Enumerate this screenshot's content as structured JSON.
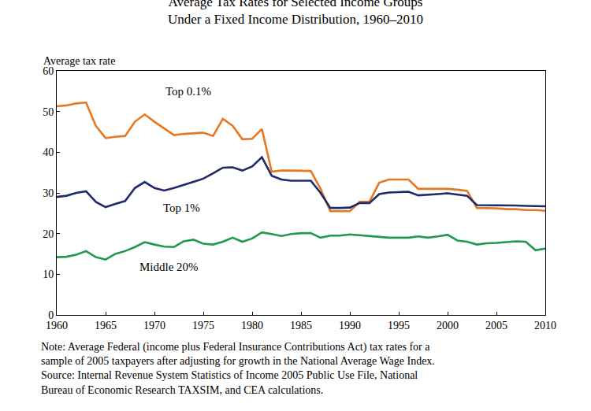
{
  "chart_data": {
    "type": "line",
    "title": "Average Tax Rates for Selected Income Groups",
    "subtitle": "Under a Fixed Income Distribution, 1960–2010",
    "y_label": "Average tax rate",
    "annotations": [
      "Note: Average Federal (income plus Federal Insurance Contributions Act) tax rates for a sample of 2005 taxpayers after adjusting for growth in the National Average Wage Index.",
      "Source: Internal Revenue System Statistics of Income 2005 Public Use File, National Bureau of Economic Research TAXSIM, and CEA calculations."
    ],
    "x": [
      1960,
      1961,
      1962,
      1963,
      1964,
      1965,
      1966,
      1967,
      1968,
      1969,
      1970,
      1971,
      1972,
      1973,
      1974,
      1975,
      1976,
      1977,
      1978,
      1979,
      1980,
      1981,
      1982,
      1983,
      1984,
      1985,
      1986,
      1987,
      1988,
      1989,
      1990,
      1991,
      1992,
      1993,
      1994,
      1995,
      1996,
      1997,
      1998,
      1999,
      2000,
      2001,
      2002,
      2003,
      2004,
      2005,
      2006,
      2007,
      2008,
      2009,
      2010
    ],
    "series": [
      {
        "name": "Top 0.1%",
        "color": "#e87722",
        "values": [
          51.3,
          51.5,
          52,
          52.2,
          46.5,
          43.5,
          43.8,
          44,
          47.5,
          49.3,
          47.5,
          45.8,
          44.2,
          44.5,
          44.7,
          44.8,
          44,
          48.2,
          46.5,
          43.2,
          43.3,
          45.7,
          35.2,
          35.5,
          35.5,
          35.5,
          35.4,
          31,
          25.5,
          25.5,
          25.5,
          27.8,
          27.8,
          32.5,
          33.3,
          33.3,
          33.3,
          31,
          31,
          31,
          31,
          30.8,
          30.5,
          26.3,
          26.3,
          26.2,
          26,
          26,
          25.8,
          25.8,
          25.6
        ]
      },
      {
        "name": "Top 1%",
        "color": "#1f2a6b",
        "values": [
          29,
          29.3,
          30,
          30.4,
          27.8,
          26.5,
          27.3,
          28,
          31.2,
          32.7,
          31.2,
          30.6,
          31.2,
          32,
          32.8,
          33.5,
          34.8,
          36.2,
          36.3,
          35.5,
          36.5,
          38.8,
          34.2,
          33.3,
          33,
          33,
          33,
          30,
          26.3,
          26.3,
          26.4,
          27.5,
          27.5,
          29.7,
          30.1,
          30.2,
          30.3,
          29.4,
          29.5,
          29.7,
          29.9,
          29.6,
          29.3,
          27,
          27,
          27,
          26.9,
          26.9,
          26.8,
          26.8,
          26.7
        ]
      },
      {
        "name": "Middle 20%",
        "color": "#1e9a4a",
        "values": [
          14.2,
          14.3,
          14.8,
          15.7,
          14.2,
          13.6,
          15,
          15.7,
          16.7,
          17.9,
          17.3,
          16.8,
          16.7,
          18.1,
          18.5,
          17.5,
          17.3,
          18,
          19,
          18,
          18.8,
          20.3,
          19.9,
          19.4,
          19.9,
          20.1,
          20.1,
          19,
          19.5,
          19.5,
          19.8,
          19.6,
          19.4,
          19.3,
          19,
          19,
          19,
          19.3,
          19,
          19.3,
          19.7,
          18.3,
          18,
          17.3,
          17.6,
          17.7,
          17.9,
          18.1,
          18,
          15.9,
          16.3
        ]
      }
    ],
    "xlim": [
      1960,
      2010
    ],
    "xticks": [
      1960,
      1965,
      1970,
      1975,
      1980,
      1985,
      1990,
      1995,
      2000,
      2005,
      2010
    ],
    "ylim": [
      0,
      60
    ],
    "yticks": [
      0,
      10,
      20,
      30,
      40,
      50,
      60
    ],
    "grid": false
  }
}
